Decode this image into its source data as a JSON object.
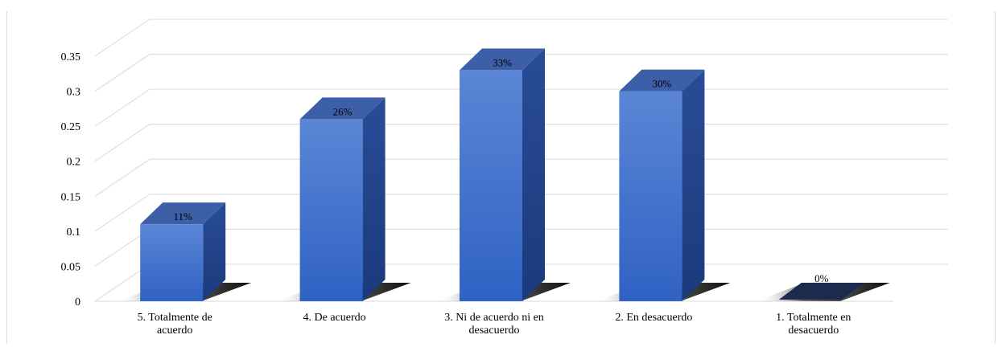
{
  "chart_data": {
    "type": "bar",
    "title": "",
    "xlabel": "",
    "ylabel": "",
    "categories": [
      [
        "5. Totalmente de",
        "acuerdo"
      ],
      [
        "4. De acuerdo"
      ],
      [
        "3. Ni de acuerdo  ni en",
        "desacuerdo"
      ],
      [
        "2. En desacuerdo"
      ],
      [
        "1. Totalmente en",
        "desacuerdo"
      ]
    ],
    "values": [
      0.11,
      0.26,
      0.33,
      0.3,
      0.0
    ],
    "data_labels": [
      "11%",
      "26%",
      "33%",
      "30%",
      "0%"
    ],
    "ylim": [
      0,
      0.35
    ],
    "yticks": [
      "0",
      "0.05",
      "0.1",
      "0.15",
      "0.2",
      "0.25",
      "0.3",
      "0.35"
    ],
    "grid": true,
    "legend": "none",
    "bar_style": "3d",
    "colors": {
      "bar_front_top": "#5b86d6",
      "bar_front_bottom": "#2f62c4",
      "bar_side": "#1f3f86",
      "bar_top": "#3c5fa8",
      "shadow": "#1b1b1b",
      "zero_bar": "#1c2b4d",
      "grid": "#d9d9d9"
    }
  }
}
